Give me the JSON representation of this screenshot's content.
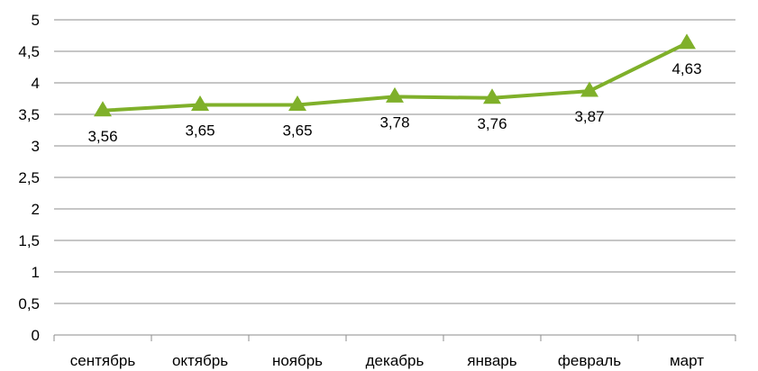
{
  "chart_data": {
    "type": "line",
    "categories": [
      "сентябрь",
      "октябрь",
      "ноябрь",
      "декабрь",
      "январь",
      "февраль",
      "март"
    ],
    "series": [
      {
        "values": [
          3.56,
          3.65,
          3.65,
          3.78,
          3.76,
          3.87,
          4.63
        ],
        "data_labels": [
          "3,56",
          "3,65",
          "3,65",
          "3,78",
          "3,76",
          "3,87",
          "4,63"
        ],
        "color": "#7fb02a",
        "marker": "triangle"
      }
    ],
    "ylim": [
      0,
      5
    ],
    "yticks": [
      0,
      0.5,
      1,
      1.5,
      2,
      2.5,
      3,
      3.5,
      4,
      4.5,
      5
    ],
    "ytick_labels": [
      "0",
      "0,5",
      "1",
      "1,5",
      "2",
      "2,5",
      "3",
      "3,5",
      "4",
      "4,5",
      "5"
    ],
    "grid": true,
    "legend": "none",
    "gridline_color": "#8c8c8c",
    "axis_color": "#8c8c8c"
  }
}
